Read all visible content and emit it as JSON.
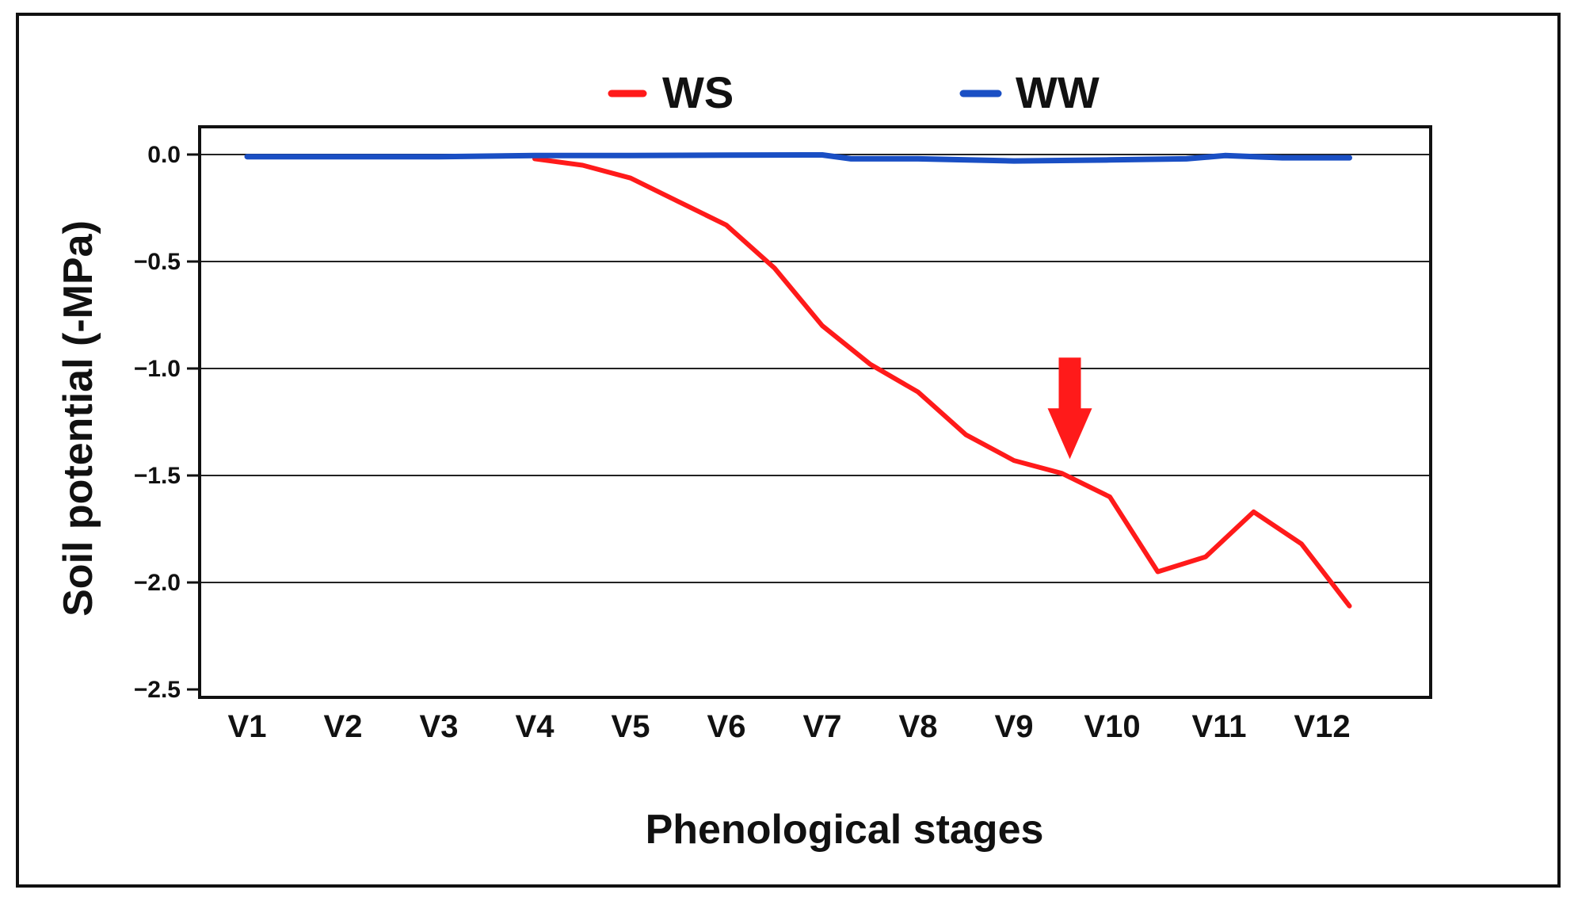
{
  "chart_data": {
    "type": "line",
    "title": "",
    "xlabel": "Phenological stages",
    "ylabel": "Soil potential (-MPa)",
    "categories": [
      "V1",
      "V2",
      "V3",
      "V4",
      "V5",
      "V6",
      "V7",
      "V8",
      "V9",
      "V10",
      "V11",
      "V12"
    ],
    "ylim": [
      -2.5,
      0.0
    ],
    "yticks": [
      0.0,
      -0.5,
      -1.0,
      -1.5,
      -2.0,
      -2.5
    ],
    "ytick_labels": [
      "0.0",
      "−0.5",
      "−1.0",
      "−1.5",
      "−2.0",
      "−2.5"
    ],
    "grid": true,
    "legend_position": "top-center",
    "series": [
      {
        "name": "WS",
        "color": "#ff1a1a",
        "x": [
          4.0,
          4.5,
          5.0,
          5.5,
          6.0,
          6.5,
          7.0,
          7.5,
          8.0,
          8.5,
          9.0,
          9.5,
          10.0,
          10.5,
          11.0,
          11.5,
          12.0,
          12.5
        ],
        "y": [
          -0.02,
          -0.05,
          -0.11,
          -0.22,
          -0.33,
          -0.53,
          -0.8,
          -0.98,
          -1.11,
          -1.31,
          -1.43,
          -1.49,
          -1.6,
          -1.95,
          -1.88,
          -1.67,
          -1.82,
          -2.11
        ]
      },
      {
        "name": "WW",
        "color": "#1a4fc4",
        "x": [
          1,
          2,
          3,
          4,
          5,
          6,
          7,
          7.3,
          8,
          9,
          10,
          10.8,
          11.2,
          11.8,
          12.5
        ],
        "y": [
          -0.01,
          -0.01,
          -0.01,
          -0.005,
          -0.005,
          -0.003,
          -0.002,
          -0.02,
          -0.02,
          -0.03,
          -0.025,
          -0.02,
          -0.005,
          -0.015,
          -0.015
        ]
      }
    ],
    "annotations": [
      {
        "type": "arrow",
        "color": "#ff1a1a",
        "x": 9.5,
        "points_to_y": -1.46,
        "description": "downward arrow above WS line"
      }
    ]
  }
}
